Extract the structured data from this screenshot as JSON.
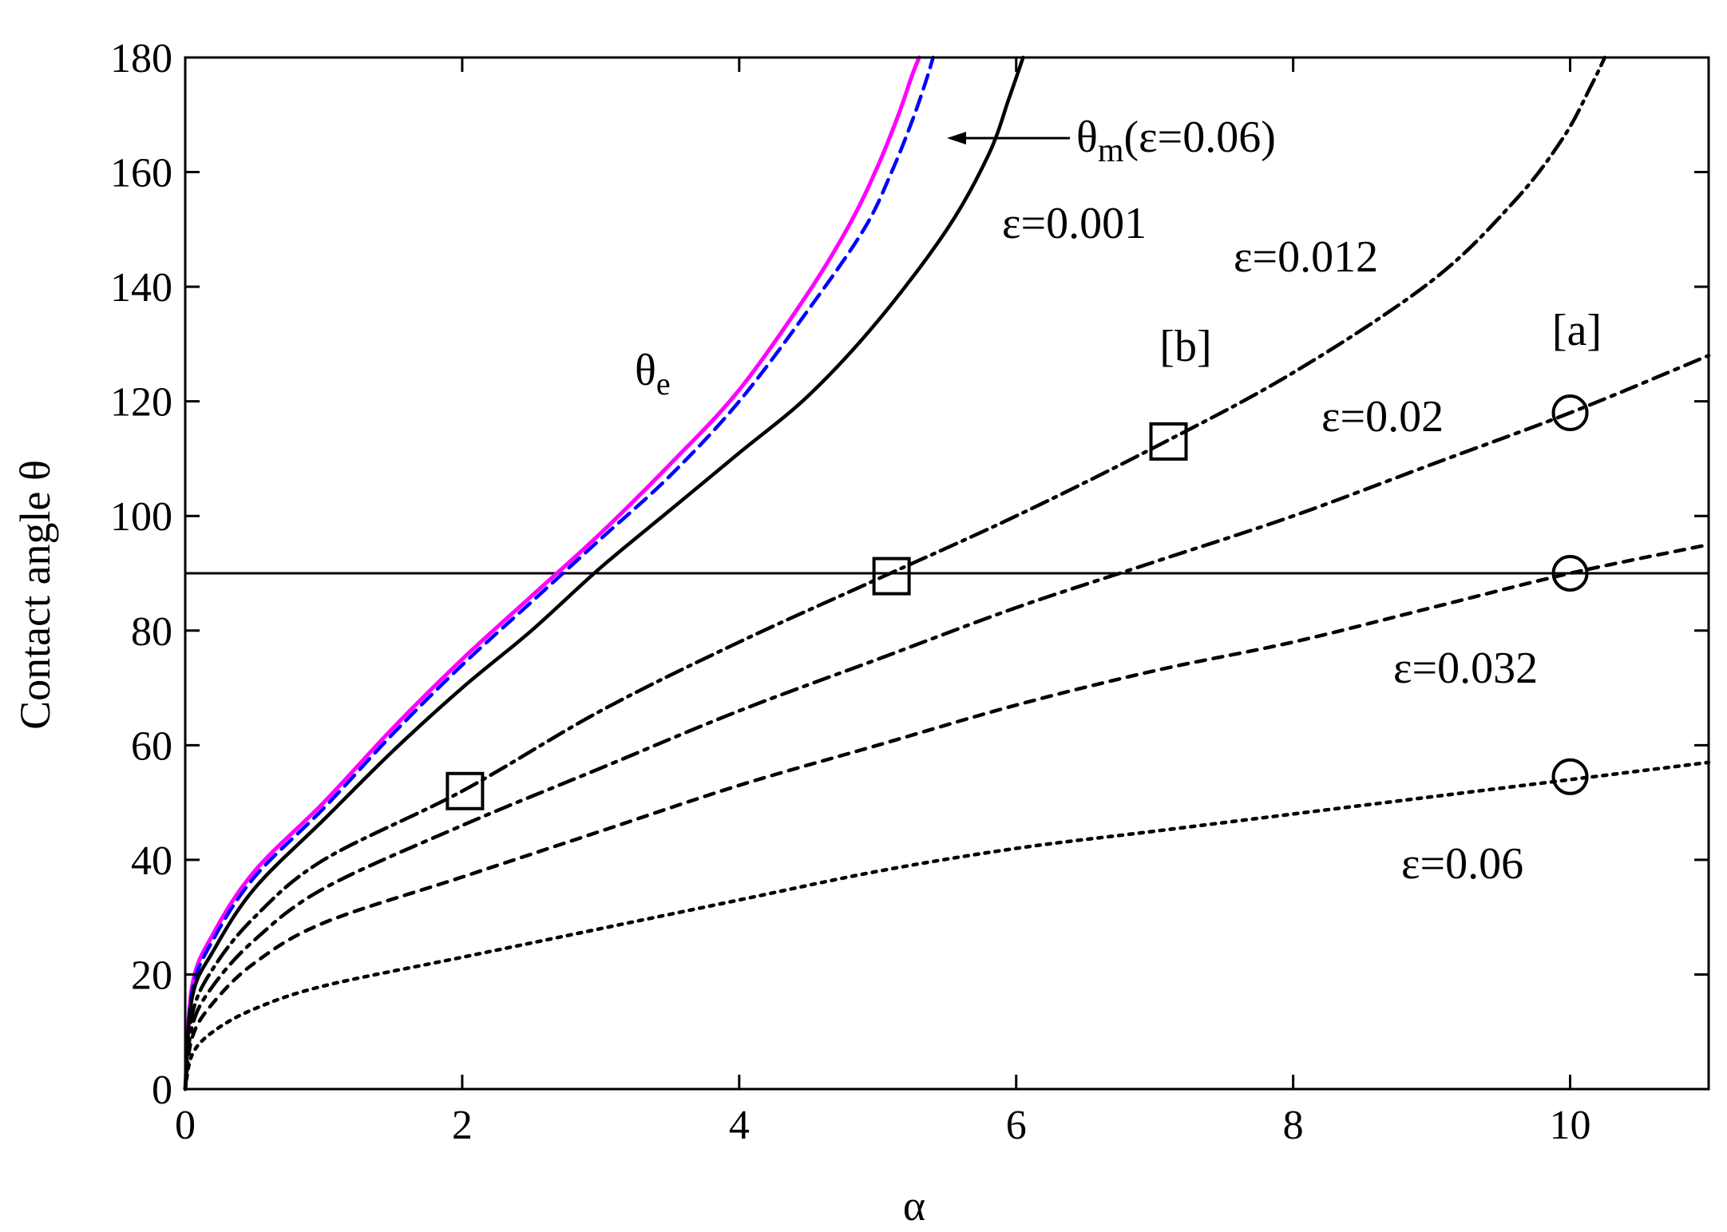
{
  "chart_data": {
    "type": "line",
    "title": "",
    "xlabel": "α",
    "ylabel": "Contact angle θ",
    "xlim": [
      0,
      11
    ],
    "ylim": [
      0,
      180
    ],
    "xticks": [
      0,
      2,
      4,
      6,
      8,
      10
    ],
    "yticks": [
      0,
      20,
      40,
      60,
      80,
      100,
      120,
      140,
      160,
      180
    ],
    "grid": false,
    "reference_line_y": 90,
    "series": [
      {
        "name": "θe",
        "color": "#ff00ff",
        "dash": "solid",
        "x": [
          0,
          0.05,
          0.2,
          0.5,
          1,
          1.5,
          2,
          2.5,
          3,
          3.5,
          4,
          4.5,
          4.8,
          5.0,
          5.15,
          5.25,
          5.3
        ],
        "y": [
          0,
          18,
          27,
          38,
          50,
          63,
          75,
          86,
          97,
          109,
          122,
          139,
          151,
          161,
          170,
          177,
          180
        ]
      },
      {
        "name": "θm(ε=0.06)",
        "color": "#0000ff",
        "dash": "dashed",
        "x": [
          0,
          0.05,
          0.2,
          0.5,
          1,
          1.5,
          2,
          2.5,
          3,
          3.5,
          4,
          4.5,
          4.9,
          5.1,
          5.25,
          5.35,
          5.4
        ],
        "y": [
          0,
          17,
          26,
          37,
          49,
          62,
          74,
          85,
          96,
          107,
          120,
          136,
          150,
          160,
          169,
          176,
          180
        ]
      },
      {
        "name": "ε=0.001",
        "color": "#000000",
        "dash": "solid",
        "x": [
          0,
          0.05,
          0.2,
          0.5,
          1,
          1.5,
          2,
          2.5,
          3,
          3.5,
          4,
          4.5,
          5,
          5.5,
          5.8,
          5.95,
          6.05
        ],
        "y": [
          0,
          16,
          24,
          35,
          47,
          59,
          70,
          80,
          91,
          101,
          111,
          121,
          134,
          150,
          163,
          173,
          180
        ]
      },
      {
        "name": "ε=0.012",
        "color": "#000000",
        "dash": "longdash",
        "x": [
          0,
          0.05,
          0.2,
          0.5,
          1,
          2,
          3,
          4,
          5,
          6,
          7,
          8,
          9,
          9.6,
          9.95,
          10.15,
          10.25
        ],
        "y": [
          0,
          13,
          21,
          30,
          40,
          52,
          66,
          78,
          89,
          100,
          112,
          125,
          141,
          155,
          166,
          175,
          180
        ]
      },
      {
        "name": "ε=0.02",
        "color": "#000000",
        "dash": "dashdot",
        "x": [
          0,
          0.05,
          0.2,
          0.5,
          1,
          2,
          3,
          4,
          5,
          6,
          7,
          8,
          9,
          10,
          11
        ],
        "y": [
          0,
          11,
          18,
          26,
          35,
          46,
          56,
          66,
          75,
          84,
          92,
          100,
          109,
          118,
          128
        ]
      },
      {
        "name": "ε=0.032",
        "color": "#000000",
        "dash": "shortdash",
        "x": [
          0,
          0.05,
          0.2,
          0.5,
          1,
          2,
          3,
          4,
          5,
          6,
          7,
          8,
          9,
          10,
          11
        ],
        "y": [
          0,
          9,
          15,
          22,
          29,
          37,
          45,
          53,
          60,
          67,
          73,
          78,
          84,
          90,
          95
        ]
      },
      {
        "name": "ε=0.06",
        "color": "#000000",
        "dash": "dotted",
        "x": [
          0,
          0.05,
          0.2,
          0.5,
          1,
          2,
          3,
          4,
          5,
          6,
          7,
          8,
          9,
          10,
          11
        ],
        "y": [
          0,
          6,
          10,
          14,
          18,
          23,
          28,
          33,
          38,
          42,
          45,
          48,
          51,
          54,
          57
        ]
      }
    ],
    "markers": [
      {
        "shape": "square",
        "x": 2.02,
        "y": 52
      },
      {
        "shape": "square",
        "x": 5.1,
        "y": 89.5
      },
      {
        "shape": "square",
        "x": 7.1,
        "y": 113
      },
      {
        "shape": "circle",
        "x": 10.0,
        "y": 118
      },
      {
        "shape": "circle",
        "x": 10.0,
        "y": 90
      },
      {
        "shape": "circle",
        "x": 10.0,
        "y": 54.5
      }
    ],
    "annotations": {
      "theta_e_symbol": "θ",
      "theta_e_sub": "e",
      "theta_m_symbol": "θ",
      "theta_m_sub": "m",
      "theta_m_rest": "(ε=0.06)",
      "eps_0001": "ε=0.001",
      "eps_0012": "ε=0.012",
      "eps_002": "ε=0.02",
      "eps_0032": "ε=0.032",
      "eps_006": "ε=0.06",
      "label_a": "[a]",
      "label_b": "[b]"
    }
  }
}
